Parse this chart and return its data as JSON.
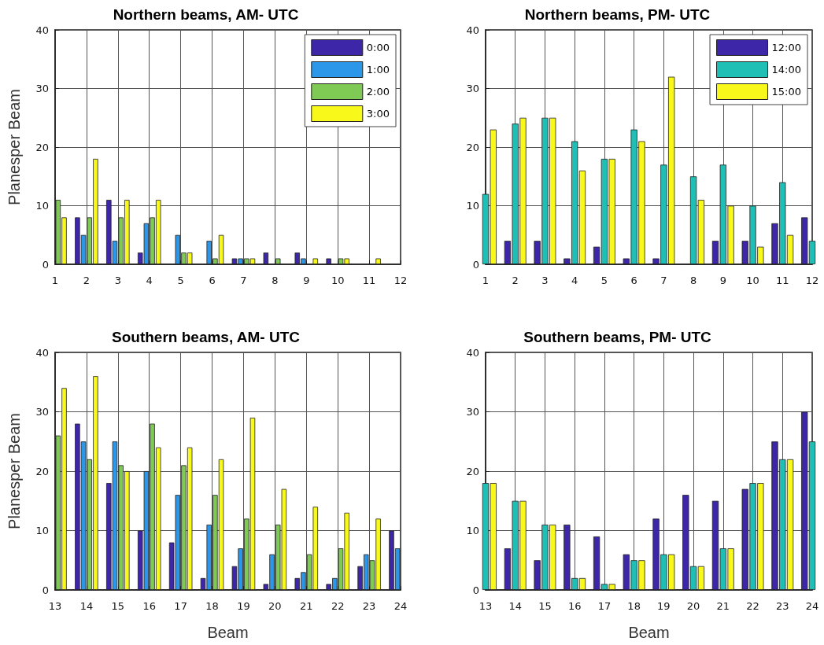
{
  "chart_data": [
    {
      "type": "bar",
      "title": "Northern beams, AM- UTC",
      "ylabel": "Planesper Beam",
      "x": [
        1,
        2,
        3,
        4,
        5,
        6,
        7,
        8,
        9,
        10,
        11,
        12
      ],
      "xlim": [
        1,
        12
      ],
      "xticks": [
        1,
        2,
        3,
        4,
        5,
        6,
        7,
        8,
        9,
        10,
        11,
        12
      ],
      "ylim": [
        0,
        40
      ],
      "yticks": [
        0,
        10,
        20,
        30,
        40
      ],
      "grid": true,
      "legend": "top right",
      "series": [
        {
          "name": "0:00",
          "color": "#3e26a8",
          "values": [
            null,
            8,
            11,
            2,
            0,
            0,
            1,
            2,
            2,
            1,
            0,
            0
          ]
        },
        {
          "name": "1:00",
          "color": "#2c96e8",
          "values": [
            null,
            5,
            4,
            7,
            5,
            4,
            1,
            0,
            1,
            0,
            0,
            0
          ]
        },
        {
          "name": "2:00",
          "color": "#7fc955",
          "values": [
            11,
            8,
            8,
            8,
            2,
            1,
            1,
            1,
            0,
            1,
            0,
            null
          ]
        },
        {
          "name": "3:00",
          "color": "#f8f81a",
          "values": [
            8,
            18,
            11,
            11,
            2,
            5,
            1,
            0,
            1,
            1,
            1,
            null
          ]
        }
      ]
    },
    {
      "type": "bar",
      "title": "Northern beams, PM- UTC",
      "x": [
        1,
        2,
        3,
        4,
        5,
        6,
        7,
        8,
        9,
        10,
        11,
        12
      ],
      "xlim": [
        1,
        12
      ],
      "xticks": [
        1,
        2,
        3,
        4,
        5,
        6,
        7,
        8,
        9,
        10,
        11,
        12
      ],
      "ylim": [
        0,
        40
      ],
      "yticks": [
        0,
        10,
        20,
        30,
        40
      ],
      "grid": true,
      "legend": "top right",
      "series": [
        {
          "name": "12:00",
          "color": "#3e26a8",
          "values": [
            null,
            4,
            4,
            1,
            3,
            1,
            1,
            0,
            4,
            4,
            7,
            8
          ]
        },
        {
          "name": "14:00",
          "color": "#1fbfb5",
          "values": [
            12,
            24,
            25,
            21,
            18,
            23,
            17,
            15,
            17,
            10,
            14,
            4
          ]
        },
        {
          "name": "15:00",
          "color": "#f8f81a",
          "values": [
            23,
            25,
            25,
            16,
            18,
            21,
            32,
            11,
            10,
            3,
            5,
            null
          ]
        }
      ]
    },
    {
      "type": "bar",
      "title": "Southern beams, AM- UTC",
      "xlabel": "Beam",
      "ylabel": "Planesper Beam",
      "x": [
        13,
        14,
        15,
        16,
        17,
        18,
        19,
        20,
        21,
        22,
        23,
        24
      ],
      "xlim": [
        13,
        24
      ],
      "xticks": [
        13,
        14,
        15,
        16,
        17,
        18,
        19,
        20,
        21,
        22,
        23,
        24
      ],
      "ylim": [
        0,
        40
      ],
      "yticks": [
        0,
        10,
        20,
        30,
        40
      ],
      "grid": true,
      "series": [
        {
          "color": "#3e26a8",
          "values": [
            null,
            28,
            18,
            10,
            8,
            2,
            4,
            1,
            2,
            1,
            4,
            10
          ]
        },
        {
          "color": "#2c96e8",
          "values": [
            null,
            25,
            25,
            20,
            16,
            11,
            7,
            6,
            3,
            2,
            6,
            7
          ]
        },
        {
          "color": "#7fc955",
          "values": [
            26,
            22,
            21,
            28,
            21,
            16,
            12,
            11,
            6,
            7,
            5,
            null
          ]
        },
        {
          "color": "#f8f81a",
          "values": [
            34,
            36,
            20,
            24,
            24,
            22,
            29,
            17,
            14,
            13,
            12,
            null
          ]
        }
      ]
    },
    {
      "type": "bar",
      "title": "Southern beams, PM- UTC",
      "xlabel": "Beam",
      "x": [
        13,
        14,
        15,
        16,
        17,
        18,
        19,
        20,
        21,
        22,
        23,
        24
      ],
      "xlim": [
        13,
        24
      ],
      "xticks": [
        13,
        14,
        15,
        16,
        17,
        18,
        19,
        20,
        21,
        22,
        23,
        24
      ],
      "ylim": [
        0,
        40
      ],
      "yticks": [
        0,
        10,
        20,
        30,
        40
      ],
      "grid": true,
      "series": [
        {
          "color": "#3e26a8",
          "values": [
            null,
            7,
            5,
            11,
            9,
            6,
            12,
            16,
            15,
            17,
            25,
            30
          ]
        },
        {
          "color": "#1fbfb5",
          "values": [
            18,
            15,
            11,
            2,
            1,
            5,
            6,
            4,
            7,
            18,
            22,
            25
          ]
        },
        {
          "color": "#f8f81a",
          "values": [
            18,
            15,
            11,
            2,
            1,
            5,
            6,
            4,
            7,
            18,
            22,
            null
          ]
        }
      ]
    }
  ]
}
